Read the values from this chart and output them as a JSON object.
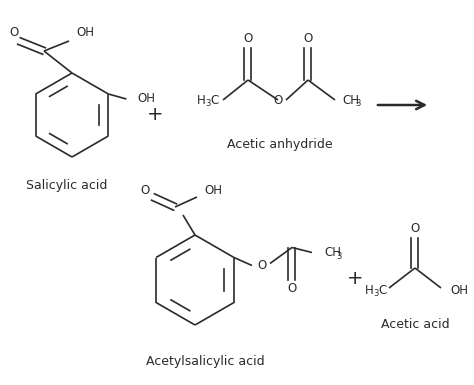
{
  "background_color": "#ffffff",
  "fig_width": 4.74,
  "fig_height": 3.85,
  "dpi": 100,
  "line_color": "#2a2a2a",
  "text_color": "#2a2a2a",
  "font_size_label": 9.0,
  "font_size_atom": 8.5,
  "font_size_subscript": 6.0,
  "line_width": 1.2,
  "salicylic_acid_label": "Salicylic acid",
  "acetic_anhydride_label": "Acetic anhydride",
  "acetylsalicylic_acid_label": "Acetylsalicylic acid",
  "acetic_acid_label": "Acetic acid"
}
